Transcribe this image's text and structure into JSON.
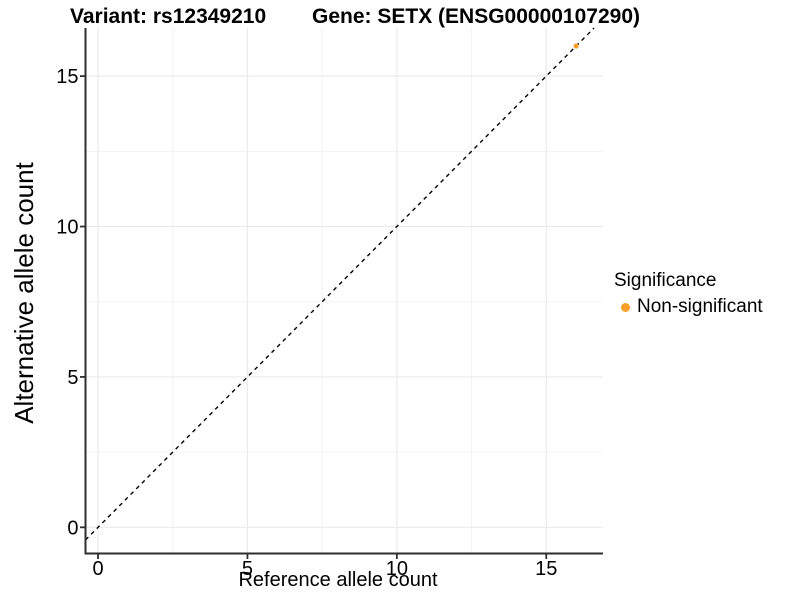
{
  "header": {
    "variant_title": "Variant: rs12349210",
    "gene_title": "Gene: SETX (ENSG00000107290)"
  },
  "legend": {
    "title": "Significance",
    "items": [
      {
        "label": "Non-significant",
        "color": "#FAA028"
      }
    ]
  },
  "chart_data": {
    "type": "scatter",
    "title": "Variant: rs12349210  /  Gene: SETX (ENSG00000107290)",
    "xlabel": "Reference allele count",
    "ylabel": "Alternative allele count",
    "xlim": [
      -0.42,
      16.9
    ],
    "ylim": [
      -0.87,
      16.6
    ],
    "xticks": [
      0,
      5,
      10,
      15
    ],
    "yticks": [
      0,
      5,
      10,
      15
    ],
    "xminor": [
      2.5,
      7.5,
      12.5
    ],
    "yminor": [
      2.5,
      7.5,
      12.5
    ],
    "grid": "major+minor",
    "legend_position": "right",
    "series": [
      {
        "name": "Non-significant",
        "color": "#FAA028",
        "points": [
          [
            16,
            16
          ]
        ]
      }
    ],
    "reference_line": {
      "type": "identity y=x",
      "slope": 1,
      "intercept": 0,
      "style": "dashed",
      "color": "#000000"
    }
  },
  "style": {
    "background": "#FFFFFF",
    "text_color": "#000000",
    "axis_color": "#2E2E2E",
    "grid_major": "#EBEBEB",
    "grid_minor": "#F3F3F3",
    "point_color": "#FAA028",
    "dash_color": "#000000"
  }
}
